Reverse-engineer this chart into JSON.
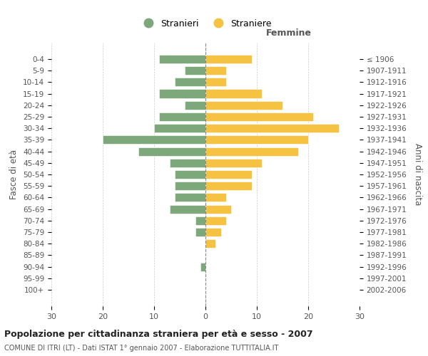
{
  "age_groups": [
    "0-4",
    "5-9",
    "10-14",
    "15-19",
    "20-24",
    "25-29",
    "30-34",
    "35-39",
    "40-44",
    "45-49",
    "50-54",
    "55-59",
    "60-64",
    "65-69",
    "70-74",
    "75-79",
    "80-84",
    "85-89",
    "90-94",
    "95-99",
    "100+"
  ],
  "birth_years": [
    "2002-2006",
    "1997-2001",
    "1992-1996",
    "1987-1991",
    "1982-1986",
    "1977-1981",
    "1972-1976",
    "1967-1971",
    "1962-1966",
    "1957-1961",
    "1952-1956",
    "1947-1951",
    "1942-1946",
    "1937-1941",
    "1932-1936",
    "1927-1931",
    "1922-1926",
    "1917-1921",
    "1912-1916",
    "1907-1911",
    "≤ 1906"
  ],
  "males": [
    9,
    4,
    6,
    9,
    4,
    9,
    10,
    20,
    13,
    7,
    6,
    6,
    6,
    7,
    2,
    2,
    0,
    0,
    1,
    0,
    0
  ],
  "females": [
    9,
    4,
    4,
    11,
    15,
    21,
    26,
    20,
    18,
    11,
    9,
    9,
    4,
    5,
    4,
    3,
    2,
    0,
    0,
    0,
    0
  ],
  "male_color": "#7da87b",
  "female_color": "#f5c242",
  "title": "Popolazione per cittadinanza straniera per età e sesso - 2007",
  "subtitle": "COMUNE DI ITRI (LT) - Dati ISTAT 1° gennaio 2007 - Elaborazione TUTTITALIA.IT",
  "xlabel_right": "Femmine",
  "ylabel_left": "Fasce di età",
  "ylabel_right": "Anni di nascita",
  "legend_male": "Stranieri",
  "legend_female": "Straniere",
  "xlim": 30,
  "background_color": "#ffffff",
  "grid_color": "#cccccc"
}
